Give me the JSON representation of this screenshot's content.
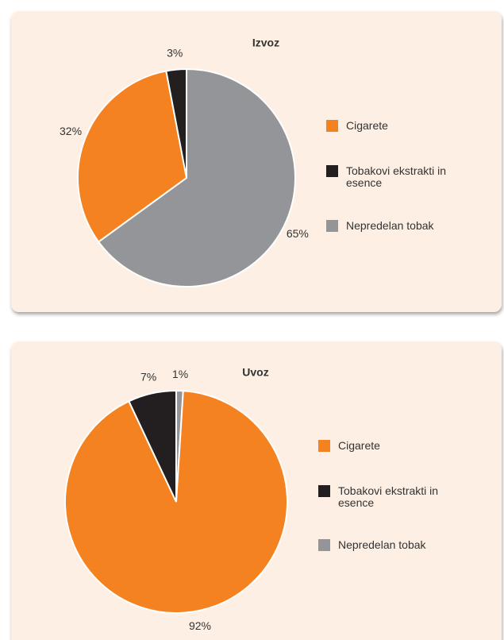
{
  "chart_data": [
    {
      "type": "pie",
      "title": "Izvoz",
      "categories": [
        "Cigarete",
        "Tobakovi ekstrakti in esence",
        "Nepredelan tobak"
      ],
      "values": [
        32,
        3,
        65
      ],
      "value_labels": [
        "32%",
        "3%",
        "65%"
      ],
      "colors": [
        "#f58220",
        "#231f20",
        "#939598"
      ]
    },
    {
      "type": "pie",
      "title": "Uvoz",
      "categories": [
        "Cigarete",
        "Tobakovi ekstrakti in esence",
        "Nepredelan tobak"
      ],
      "values": [
        92,
        7,
        1
      ],
      "value_labels": [
        "92%",
        "7%",
        "1%"
      ],
      "colors": [
        "#f58220",
        "#231f20",
        "#939598"
      ]
    }
  ]
}
